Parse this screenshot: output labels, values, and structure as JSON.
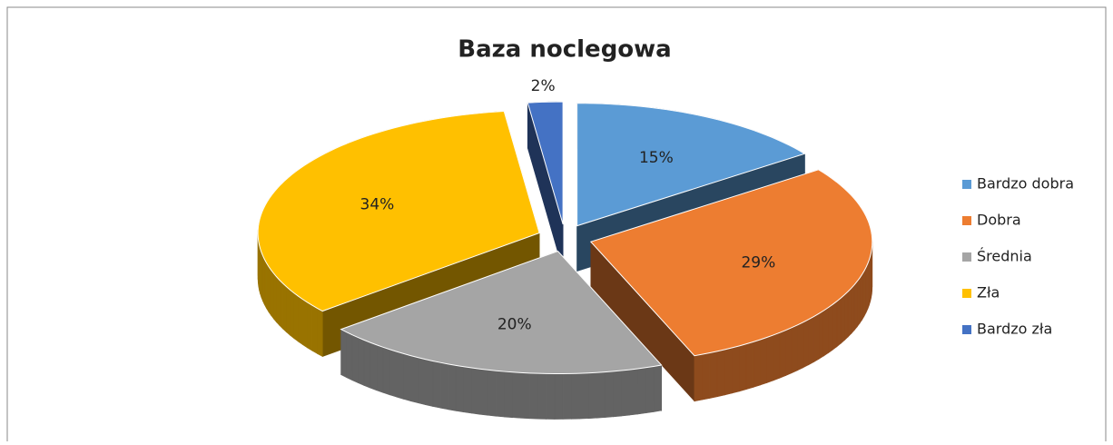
{
  "chart_data": {
    "type": "pie",
    "title": "Baza noclegowa",
    "categories": [
      "Bardzo dobra",
      "Dobra",
      "Średnia",
      "Zła",
      "Bardzo zła"
    ],
    "values": [
      15,
      29,
      20,
      34,
      2
    ],
    "value_labels": [
      "15%",
      "29%",
      "20%",
      "34%",
      "2%"
    ],
    "colors": [
      "#5b9bd5",
      "#ed7d31",
      "#a5a5a5",
      "#ffc000",
      "#4472c4"
    ],
    "legend": "right"
  }
}
